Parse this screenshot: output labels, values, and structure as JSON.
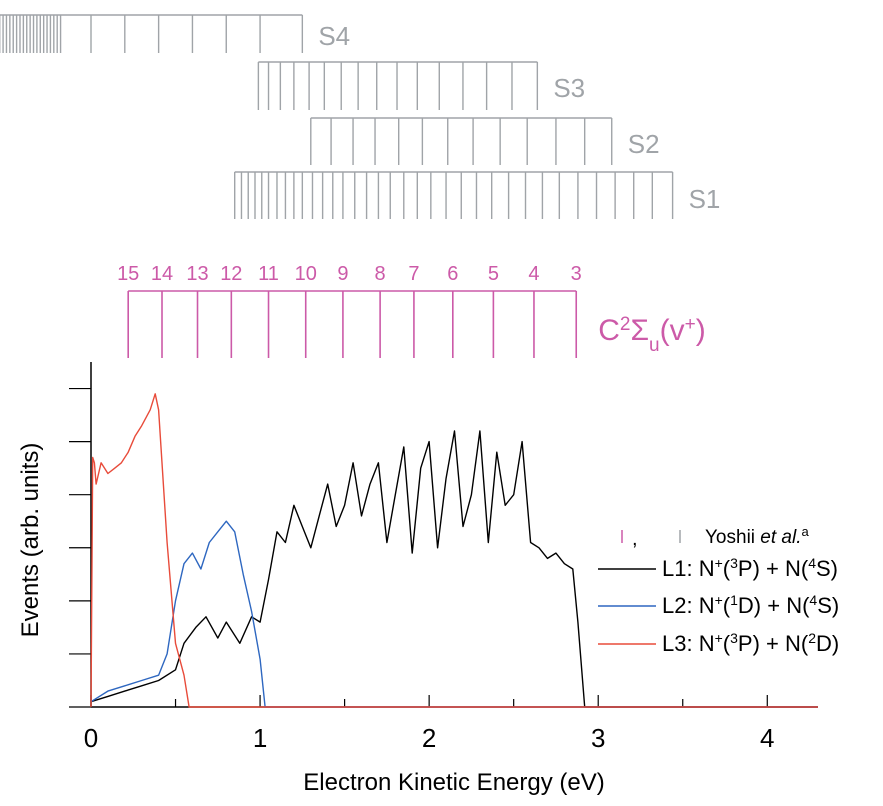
{
  "colors": {
    "axis": "#000000",
    "series_gray": "#a0a4a8",
    "series_pink": "#cc5aa8",
    "l1": "#000000",
    "l2": "#2e67c0",
    "l3": "#e84b3a"
  },
  "chart_data": {
    "type": "line",
    "xlabel": "Electron Kinetic Energy (eV)",
    "ylabel": "Events (arb. units)",
    "xlim": [
      0,
      4.3
    ],
    "ylim": [
      0,
      6.5
    ],
    "x_ticks": [
      0,
      1,
      2,
      3,
      4
    ],
    "x_ticks_labels": [
      "0",
      "1",
      "2",
      "3",
      "4"
    ],
    "y_ticks": [
      0,
      1,
      2,
      3,
      4,
      5,
      6
    ],
    "grid": false,
    "legend_position": "right",
    "legend_header": {
      "text": ", ",
      "label_prefix": "Yoshii ",
      "label_italic": "et al.",
      "label_sup": "a"
    },
    "series": [
      {
        "name": "L1: N+(3P) + N(4S)",
        "legend_parts": [
          "L1: N",
          "+",
          "(",
          "3",
          "P) + N(",
          "4",
          "S)"
        ],
        "color": "#000000",
        "x": [
          0.0,
          0.1,
          0.2,
          0.3,
          0.4,
          0.5,
          0.55,
          0.62,
          0.68,
          0.75,
          0.8,
          0.88,
          0.95,
          1.0,
          1.05,
          1.1,
          1.15,
          1.2,
          1.25,
          1.3,
          1.35,
          1.4,
          1.45,
          1.5,
          1.55,
          1.6,
          1.65,
          1.7,
          1.75,
          1.8,
          1.85,
          1.9,
          1.95,
          2.0,
          2.05,
          2.1,
          2.15,
          2.2,
          2.25,
          2.3,
          2.35,
          2.4,
          2.45,
          2.5,
          2.55,
          2.6,
          2.65,
          2.7,
          2.75,
          2.8,
          2.85,
          2.88,
          2.92,
          4.3
        ],
        "y": [
          0.1,
          0.2,
          0.3,
          0.4,
          0.5,
          0.7,
          1.2,
          1.5,
          1.7,
          1.3,
          1.6,
          1.2,
          1.7,
          1.6,
          2.4,
          3.3,
          3.1,
          3.8,
          3.4,
          3.0,
          3.6,
          4.2,
          3.4,
          3.8,
          4.6,
          3.6,
          4.2,
          4.6,
          3.1,
          4.0,
          4.9,
          2.9,
          4.5,
          5.0,
          3.0,
          4.3,
          5.2,
          3.4,
          4.0,
          5.2,
          3.1,
          4.8,
          3.8,
          4.0,
          5.0,
          3.1,
          3.0,
          2.8,
          2.9,
          2.7,
          2.6,
          1.6,
          0.0,
          0.0
        ]
      },
      {
        "name": "L2: N+(1D) + N(4S)",
        "legend_parts": [
          "L2: N",
          "+",
          "(",
          "1",
          "D) + N(",
          "4",
          "S)"
        ],
        "color": "#2e67c0",
        "x": [
          0.0,
          0.1,
          0.2,
          0.3,
          0.4,
          0.45,
          0.5,
          0.55,
          0.6,
          0.65,
          0.7,
          0.75,
          0.8,
          0.85,
          0.9,
          0.95,
          1.0,
          1.03,
          4.3
        ],
        "y": [
          0.1,
          0.3,
          0.4,
          0.5,
          0.6,
          1.0,
          2.0,
          2.7,
          2.9,
          2.6,
          3.1,
          3.3,
          3.5,
          3.3,
          2.5,
          1.8,
          0.9,
          0.0,
          0.0
        ]
      },
      {
        "name": "L3: N+(3P) + N(2D)",
        "legend_parts": [
          "L3: N",
          "+",
          "(",
          "3",
          "P) + N(",
          "2",
          "D)"
        ],
        "color": "#e84b3a",
        "x": [
          0.0,
          0.01,
          0.02,
          0.03,
          0.06,
          0.1,
          0.14,
          0.18,
          0.22,
          0.26,
          0.3,
          0.35,
          0.38,
          0.4,
          0.45,
          0.5,
          0.55,
          0.58,
          4.3
        ],
        "y": [
          0.0,
          4.7,
          4.6,
          4.2,
          4.6,
          4.4,
          4.5,
          4.6,
          4.8,
          5.1,
          5.3,
          5.6,
          5.9,
          5.6,
          3.1,
          1.2,
          0.6,
          0.0,
          0.0
        ]
      }
    ],
    "progressions": [
      {
        "name": "S4",
        "color": "#a0a4a8",
        "x_positions": [
          -0.64,
          -0.62,
          -0.6,
          -0.58,
          -0.56,
          -0.54,
          -0.52,
          -0.5,
          -0.48,
          -0.46,
          -0.44,
          -0.42,
          -0.4,
          -0.38,
          -0.36,
          -0.34,
          -0.32,
          -0.3,
          -0.28,
          -0.26,
          -0.24,
          -0.22,
          -0.2,
          -0.18,
          0.0,
          0.2,
          0.4,
          0.6,
          0.8,
          1.0,
          1.25
        ]
      },
      {
        "name": "S3",
        "color": "#a0a4a8",
        "x_positions": [
          0.99,
          1.05,
          1.12,
          1.2,
          1.29,
          1.38,
          1.48,
          1.58,
          1.69,
          1.81,
          1.93,
          2.06,
          2.2,
          2.34,
          2.49,
          2.64
        ]
      },
      {
        "name": "S2",
        "color": "#a0a4a8",
        "x_positions": [
          1.3,
          1.42,
          1.55,
          1.68,
          1.82,
          1.96,
          2.11,
          2.26,
          2.42,
          2.58,
          2.75,
          2.92,
          3.08
        ]
      },
      {
        "name": "S1",
        "color": "#a0a4a8",
        "x_positions": [
          0.85,
          0.89,
          0.93,
          0.97,
          1.01,
          1.05,
          1.1,
          1.15,
          1.2,
          1.25,
          1.31,
          1.37,
          1.43,
          1.49,
          1.56,
          1.63,
          1.7,
          1.77,
          1.85,
          1.93,
          2.01,
          2.1,
          2.19,
          2.28,
          2.37,
          2.47,
          2.57,
          2.67,
          2.77,
          2.88,
          2.99,
          3.1,
          3.21,
          3.32,
          3.44
        ]
      },
      {
        "name": "C2Σu(v+)",
        "label_parts": [
          "C",
          "2",
          "Σ",
          "u",
          "(v",
          "+",
          ")"
        ],
        "color": "#cc5aa8",
        "levels": [
          "15",
          "14",
          "13",
          "12",
          "11",
          "10",
          "9",
          "8",
          "7",
          "6",
          "5",
          "4",
          "3"
        ],
        "x_positions": [
          0.22,
          0.42,
          0.63,
          0.83,
          1.05,
          1.27,
          1.49,
          1.71,
          1.91,
          2.14,
          2.38,
          2.62,
          2.87
        ]
      }
    ]
  }
}
